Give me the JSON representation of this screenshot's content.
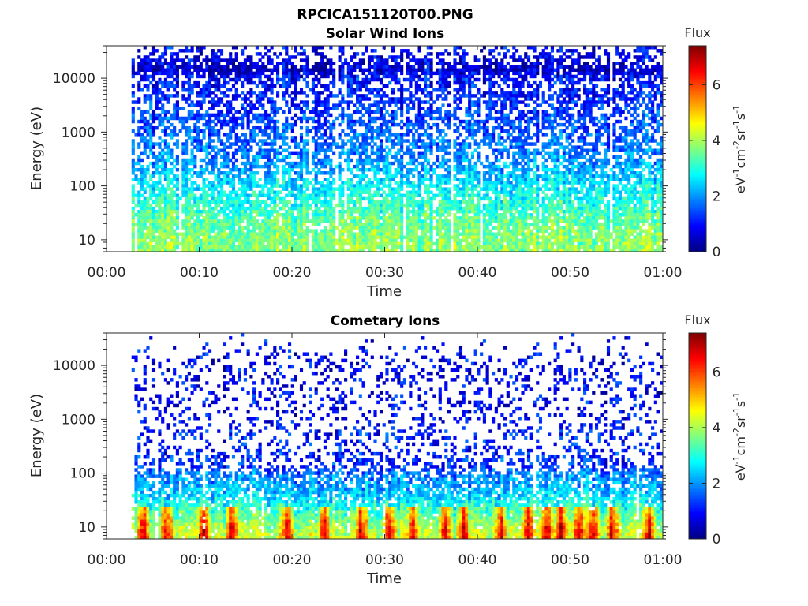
{
  "figure": {
    "title": "RPCICA151120T00.PNG"
  },
  "chart_data": [
    {
      "type": "heatmap",
      "title": "Solar Wind Ions",
      "xlabel": "Time",
      "ylabel": "Energy (eV)",
      "x_ticks": [
        "00:00",
        "00:10",
        "00:20",
        "00:30",
        "00:40",
        "00:50",
        "01:00"
      ],
      "x_range_minutes": [
        0,
        60
      ],
      "data_start_minutes": 2.7,
      "y_scale": "log",
      "y_ticks": [
        "10",
        "100",
        "1000",
        "10000"
      ],
      "y_range": [
        6,
        40000
      ],
      "colorbar": {
        "title": "Flux",
        "label": "eV-1cm-2sr-1s-1",
        "ticks": [
          "0",
          "2",
          "4",
          "6"
        ],
        "range": [
          0,
          7.4
        ],
        "colormap": "jet"
      },
      "flux_profile": {
        "energy_levels": [
          10,
          20,
          40,
          100,
          300,
          1000,
          3000,
          10000,
          14000,
          30000
        ],
        "typical_flux": [
          3.8,
          3.6,
          3.2,
          2.7,
          2.0,
          1.6,
          1.3,
          1.0,
          0.6,
          0.9
        ],
        "coverage": [
          0.95,
          0.9,
          0.85,
          0.75,
          0.65,
          0.6,
          0.6,
          0.6,
          0.95,
          0.35
        ]
      }
    },
    {
      "type": "heatmap",
      "title": "Cometary Ions",
      "xlabel": "Time",
      "ylabel": "Energy (eV)",
      "x_ticks": [
        "00:00",
        "00:10",
        "00:20",
        "00:30",
        "00:40",
        "00:50",
        "01:00"
      ],
      "x_range_minutes": [
        0,
        60
      ],
      "data_start_minutes": 2.7,
      "y_scale": "log",
      "y_ticks": [
        "10",
        "100",
        "1000",
        "10000"
      ],
      "y_range": [
        6,
        40000
      ],
      "colorbar": {
        "title": "Flux",
        "label": "eV-1cm-2sr-1s-1",
        "ticks": [
          "0",
          "2",
          "4",
          "6"
        ],
        "range": [
          0,
          7.4
        ],
        "colormap": "jet"
      },
      "flux_profile": {
        "energy_levels": [
          8,
          12,
          20,
          40,
          100,
          130,
          300,
          1000,
          10000,
          30000
        ],
        "typical_flux": [
          4.2,
          3.8,
          3.2,
          2.4,
          1.8,
          1.2,
          1.1,
          0.9,
          0.8,
          1.0
        ],
        "coverage": [
          0.95,
          0.95,
          0.9,
          0.8,
          0.7,
          0.5,
          0.25,
          0.2,
          0.25,
          0.02
        ]
      },
      "peak_bursts_minutes": [
        4,
        6.5,
        10.5,
        13.5,
        19.5,
        23.5,
        27.5,
        30.5,
        33,
        36.5,
        38.5,
        42.5,
        45.5,
        47.5,
        49,
        51,
        52.5,
        54.5,
        58.5
      ]
    }
  ]
}
